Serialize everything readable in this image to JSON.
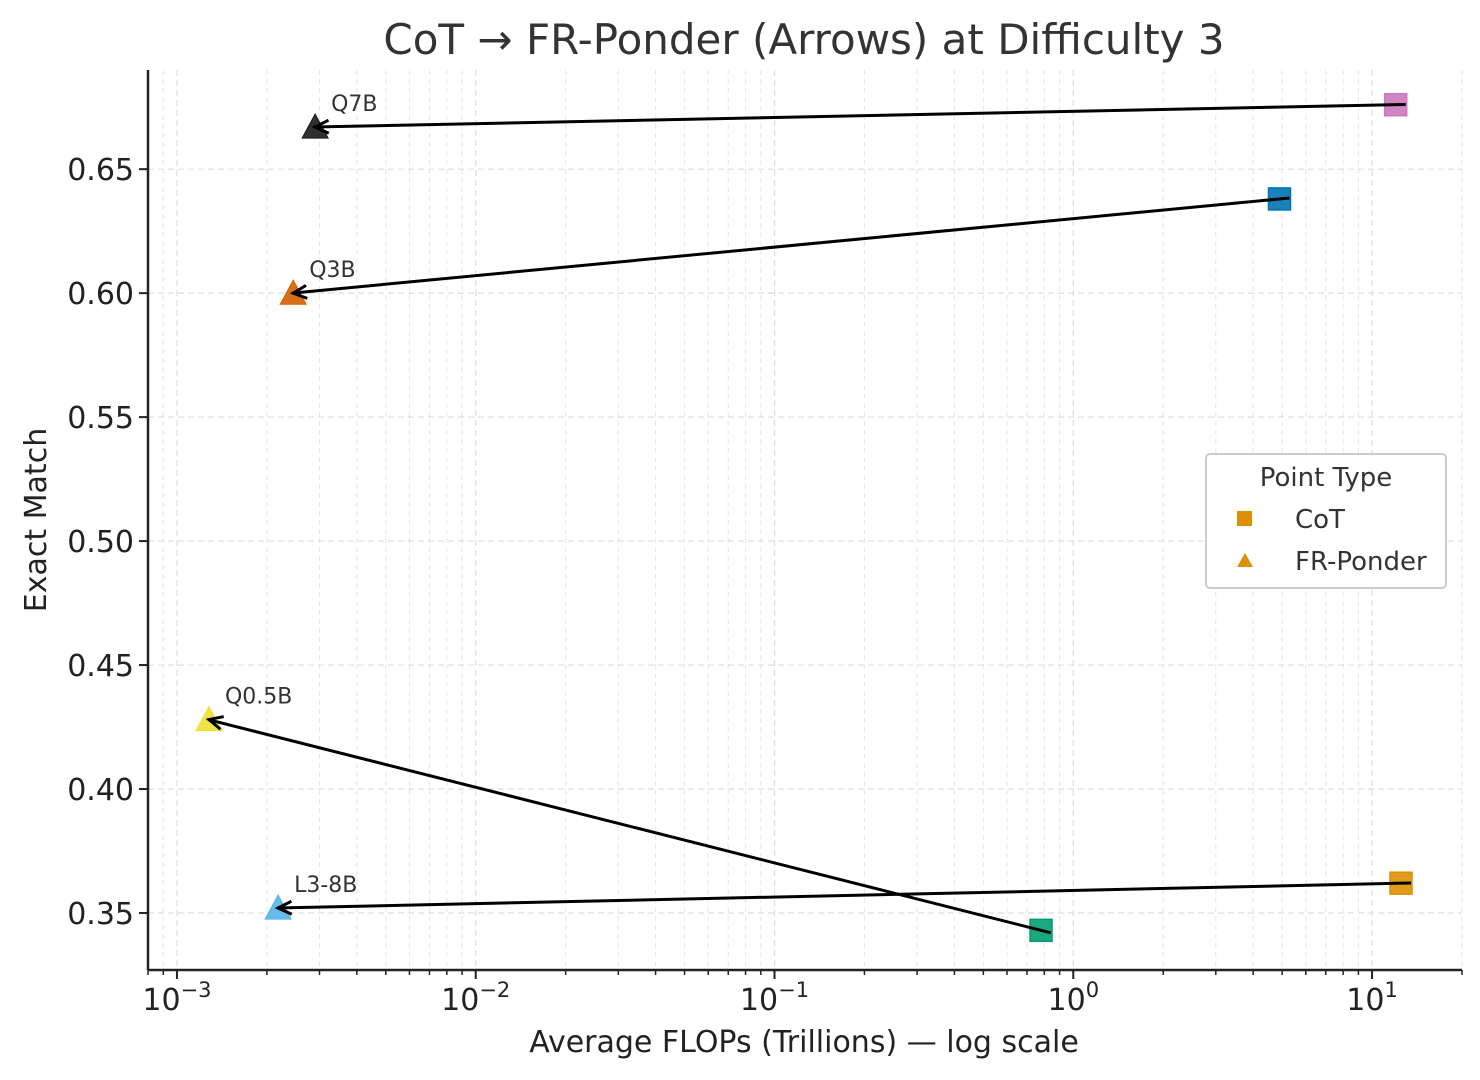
{
  "chart_data": {
    "type": "scatter",
    "title": "CoT → FR-Ponder (Arrows) at Difficulty 3",
    "xlabel": "Average FLOPs (Trillions) — log scale",
    "ylabel": "Exact Match",
    "xscale": "log",
    "xlim": [
      0.0008,
      20
    ],
    "ylim": [
      0.327,
      0.69
    ],
    "grid": true,
    "x_ticks": [
      {
        "value": 0.001,
        "base": "10",
        "exp": "−3"
      },
      {
        "value": 0.01,
        "base": "10",
        "exp": "−2"
      },
      {
        "value": 0.1,
        "base": "10",
        "exp": "−1"
      },
      {
        "value": 1,
        "base": "10",
        "exp": "0"
      },
      {
        "value": 10,
        "base": "10",
        "exp": "1"
      }
    ],
    "y_ticks": [
      {
        "value": 0.35,
        "label": "0.35"
      },
      {
        "value": 0.4,
        "label": "0.40"
      },
      {
        "value": 0.45,
        "label": "0.45"
      },
      {
        "value": 0.5,
        "label": "0.50"
      },
      {
        "value": 0.55,
        "label": "0.55"
      },
      {
        "value": 0.6,
        "label": "0.60"
      },
      {
        "value": 0.65,
        "label": "0.65"
      }
    ],
    "series": [
      {
        "name": "Q7B",
        "color": "#CC78BC",
        "cot": {
          "x": 12.0,
          "y": 0.676
        },
        "ponder": {
          "x": 0.0029,
          "y": 0.667
        }
      },
      {
        "name": "Q3B",
        "color": "#0173B2",
        "ponder_color": "#D55E00",
        "cot": {
          "x": 4.9,
          "y": 0.638
        },
        "ponder": {
          "x": 0.00245,
          "y": 0.6
        }
      },
      {
        "name": "Q0.5B",
        "color": "#029E73",
        "ponder_color": "#ECE133",
        "cot": {
          "x": 0.78,
          "y": 0.343
        },
        "ponder": {
          "x": 0.00128,
          "y": 0.428
        }
      },
      {
        "name": "L3-8B",
        "color": "#DE8F05",
        "ponder_color": "#56B4E9",
        "cot": {
          "x": 12.5,
          "y": 0.362
        },
        "ponder": {
          "x": 0.00218,
          "y": 0.352
        }
      }
    ],
    "q7b_ponder_color": "#1a1a1a",
    "legend": {
      "title": "Point Type",
      "position": "center-right",
      "marker_color": "#DE8F05",
      "entries": [
        {
          "label": "CoT",
          "marker": "square"
        },
        {
          "label": "FR-Ponder",
          "marker": "triangle"
        }
      ]
    }
  }
}
